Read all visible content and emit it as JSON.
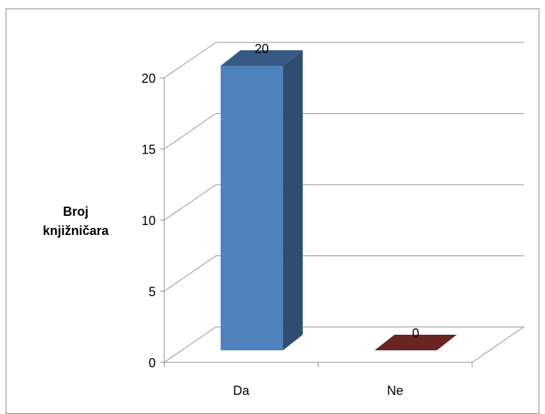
{
  "chart_data": {
    "type": "bar",
    "three_d": true,
    "categories": [
      "Da",
      "Ne"
    ],
    "values": [
      20,
      0
    ],
    "colors": [
      "#4f81bd",
      "#7b2a2a"
    ],
    "title": "",
    "xlabel": "",
    "ylabel": [
      "Broj",
      "knjižničara"
    ],
    "ylim": [
      0,
      20
    ],
    "yticks": [
      "0",
      "5",
      "10",
      "15",
      "20"
    ],
    "grid": true,
    "legend": "none"
  }
}
